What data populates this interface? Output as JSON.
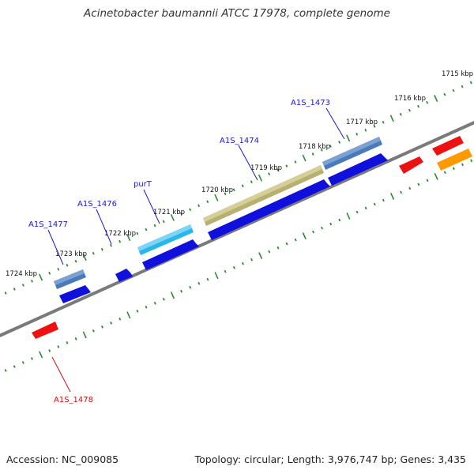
{
  "header": {
    "title": "Acinetobacter baumannii ATCC 17978, complete genome"
  },
  "footer": {
    "accession": "Accession: NC_009085",
    "summary": "Topology: circular; Length: 3,976,747 bp; Genes: 3,435"
  },
  "colors": {
    "backbone": "#7a7a7a",
    "ruler_dots": "#2e8b2e",
    "label_blue": "#1a1acc",
    "label_red": "#cc1111",
    "cds_blue": "#1010dd",
    "cds_steel": "#4a7ab8",
    "cds_cyan": "#29b6e8",
    "cds_olive": "#b8b070",
    "cds_red": "#ee1111",
    "cds_orange": "#ff9900"
  },
  "ruler": {
    "kbp_labels": [
      "1715 kbp",
      "1716 kbp",
      "1717 kbp",
      "1718 kbp",
      "1719 kbp",
      "1720 kbp",
      "1721 kbp",
      "1722 kbp",
      "1723 kbp",
      "1724 kbp"
    ]
  },
  "gene_labels": [
    {
      "id": "a1s_1473",
      "text": "A1S_1473",
      "color": "label_blue"
    },
    {
      "id": "a1s_1474",
      "text": "A1S_1474",
      "color": "label_blue"
    },
    {
      "id": "purt",
      "text": "purT",
      "color": "label_blue"
    },
    {
      "id": "a1s_1476",
      "text": "A1S_1476",
      "color": "label_blue"
    },
    {
      "id": "a1s_1477",
      "text": "A1S_1477",
      "color": "label_blue"
    },
    {
      "id": "a1s_1478",
      "text": "A1S_1478",
      "color": "label_red"
    }
  ]
}
